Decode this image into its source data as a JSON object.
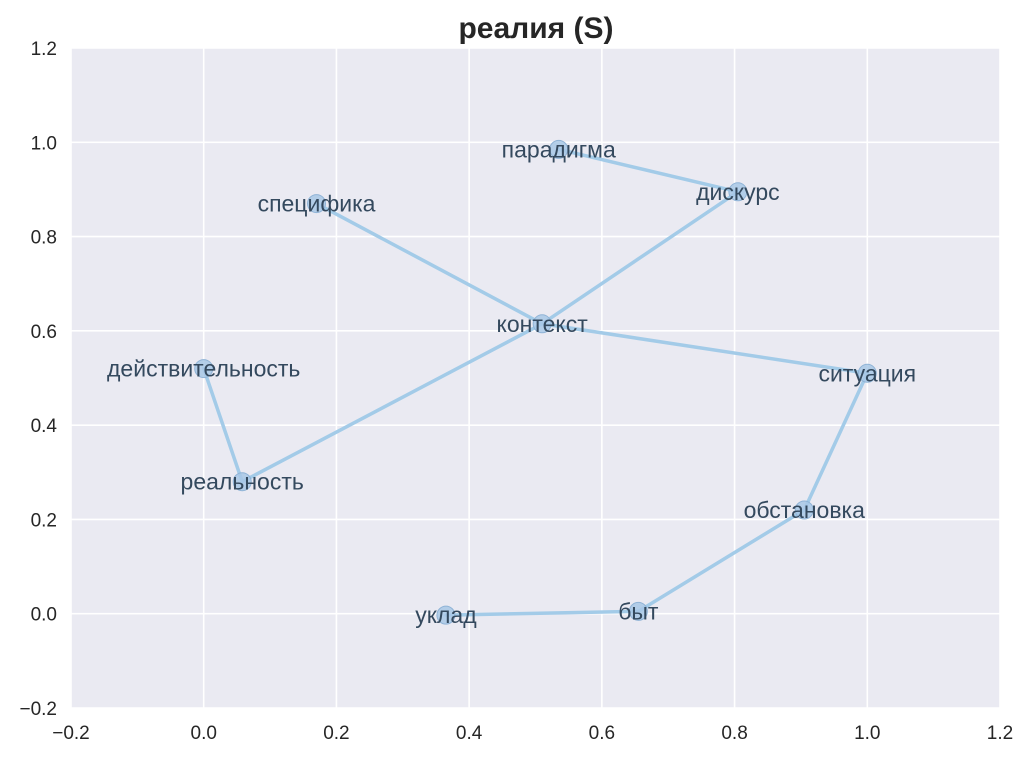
{
  "chart_data": {
    "type": "scatter",
    "title": "реалия (S)",
    "xlabel": "",
    "ylabel": "",
    "xlim": [
      -0.2,
      1.2
    ],
    "ylim": [
      -0.2,
      1.2
    ],
    "xticks": [
      -0.2,
      0.0,
      0.2,
      0.4,
      0.6,
      0.8,
      1.0,
      1.2
    ],
    "yticks": [
      -0.2,
      0.0,
      0.2,
      0.4,
      0.6,
      0.8,
      1.0,
      1.2
    ],
    "xtick_labels": [
      "−0.2",
      "0.0",
      "0.2",
      "0.4",
      "0.6",
      "0.8",
      "1.0",
      "1.2"
    ],
    "ytick_labels": [
      "−0.2",
      "0.0",
      "0.2",
      "0.4",
      "0.6",
      "0.8",
      "1.0",
      "1.2"
    ],
    "grid": true,
    "point_color": "#a8c8e6",
    "edge_color": "#a3cbe8",
    "label_color": "#34495e",
    "background_color": "#eaeaf2",
    "points": [
      {
        "label": "парадигма",
        "x": 0.535,
        "y": 0.985
      },
      {
        "label": "дискурс",
        "x": 0.805,
        "y": 0.895
      },
      {
        "label": "специфика",
        "x": 0.17,
        "y": 0.87
      },
      {
        "label": "контекст",
        "x": 0.51,
        "y": 0.615
      },
      {
        "label": "ситуация",
        "x": 1.0,
        "y": 0.51
      },
      {
        "label": "действительность",
        "x": 0.0,
        "y": 0.52
      },
      {
        "label": "реальность",
        "x": 0.058,
        "y": 0.28
      },
      {
        "label": "обстановка",
        "x": 0.905,
        "y": 0.22
      },
      {
        "label": "уклад",
        "x": 0.365,
        "y": -0.003
      },
      {
        "label": "быт",
        "x": 0.655,
        "y": 0.005
      }
    ],
    "edges": [
      [
        "парадигма",
        "дискурс"
      ],
      [
        "дискурс",
        "контекст"
      ],
      [
        "специфика",
        "контекст"
      ],
      [
        "контекст",
        "ситуация"
      ],
      [
        "контекст",
        "реальность"
      ],
      [
        "действительность",
        "реальность"
      ],
      [
        "ситуация",
        "обстановка"
      ],
      [
        "обстановка",
        "быт"
      ],
      [
        "быт",
        "уклад"
      ]
    ]
  }
}
